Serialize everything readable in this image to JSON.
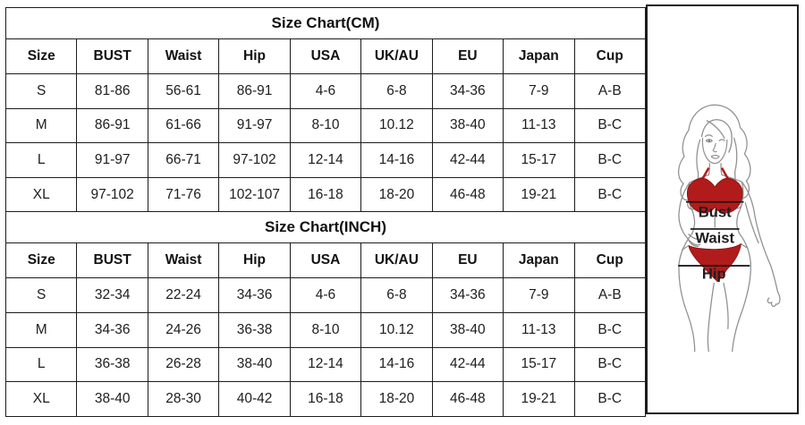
{
  "tables": [
    {
      "title": "Size Chart(CM)",
      "headers": [
        "Size",
        "BUST",
        "Waist",
        "Hip",
        "USA",
        "UK/AU",
        "EU",
        "Japan",
        "Cup"
      ],
      "rows": [
        [
          "S",
          "81-86",
          "56-61",
          "86-91",
          "4-6",
          "6-8",
          "34-36",
          "7-9",
          "A-B"
        ],
        [
          "M",
          "86-91",
          "61-66",
          "91-97",
          "8-10",
          "10.12",
          "38-40",
          "11-13",
          "B-C"
        ],
        [
          "L",
          "91-97",
          "66-71",
          "97-102",
          "12-14",
          "14-16",
          "42-44",
          "15-17",
          "B-C"
        ],
        [
          "XL",
          "97-102",
          "71-76",
          "102-107",
          "16-18",
          "18-20",
          "46-48",
          "19-21",
          "B-C"
        ]
      ]
    },
    {
      "title": "Size Chart(INCH)",
      "headers": [
        "Size",
        "BUST",
        "Waist",
        "Hip",
        "USA",
        "UK/AU",
        "EU",
        "Japan",
        "Cup"
      ],
      "rows": [
        [
          "S",
          "32-34",
          "22-24",
          "34-36",
          "4-6",
          "6-8",
          "34-36",
          "7-9",
          "A-B"
        ],
        [
          "M",
          "34-36",
          "24-26",
          "36-38",
          "8-10",
          "10.12",
          "38-40",
          "11-13",
          "B-C"
        ],
        [
          "L",
          "36-38",
          "26-28",
          "38-40",
          "12-14",
          "14-16",
          "42-44",
          "15-17",
          "B-C"
        ],
        [
          "XL",
          "38-40",
          "28-30",
          "40-42",
          "16-18",
          "18-20",
          "46-48",
          "19-21",
          "B-C"
        ]
      ]
    }
  ],
  "figure": {
    "labels": {
      "bust": "Bust",
      "waist": "Waist",
      "hip": "Hip"
    }
  },
  "colors": {
    "bikini_red": "#b21b1b",
    "line_gray": "#909090",
    "border_black": "#1c1c1c"
  }
}
